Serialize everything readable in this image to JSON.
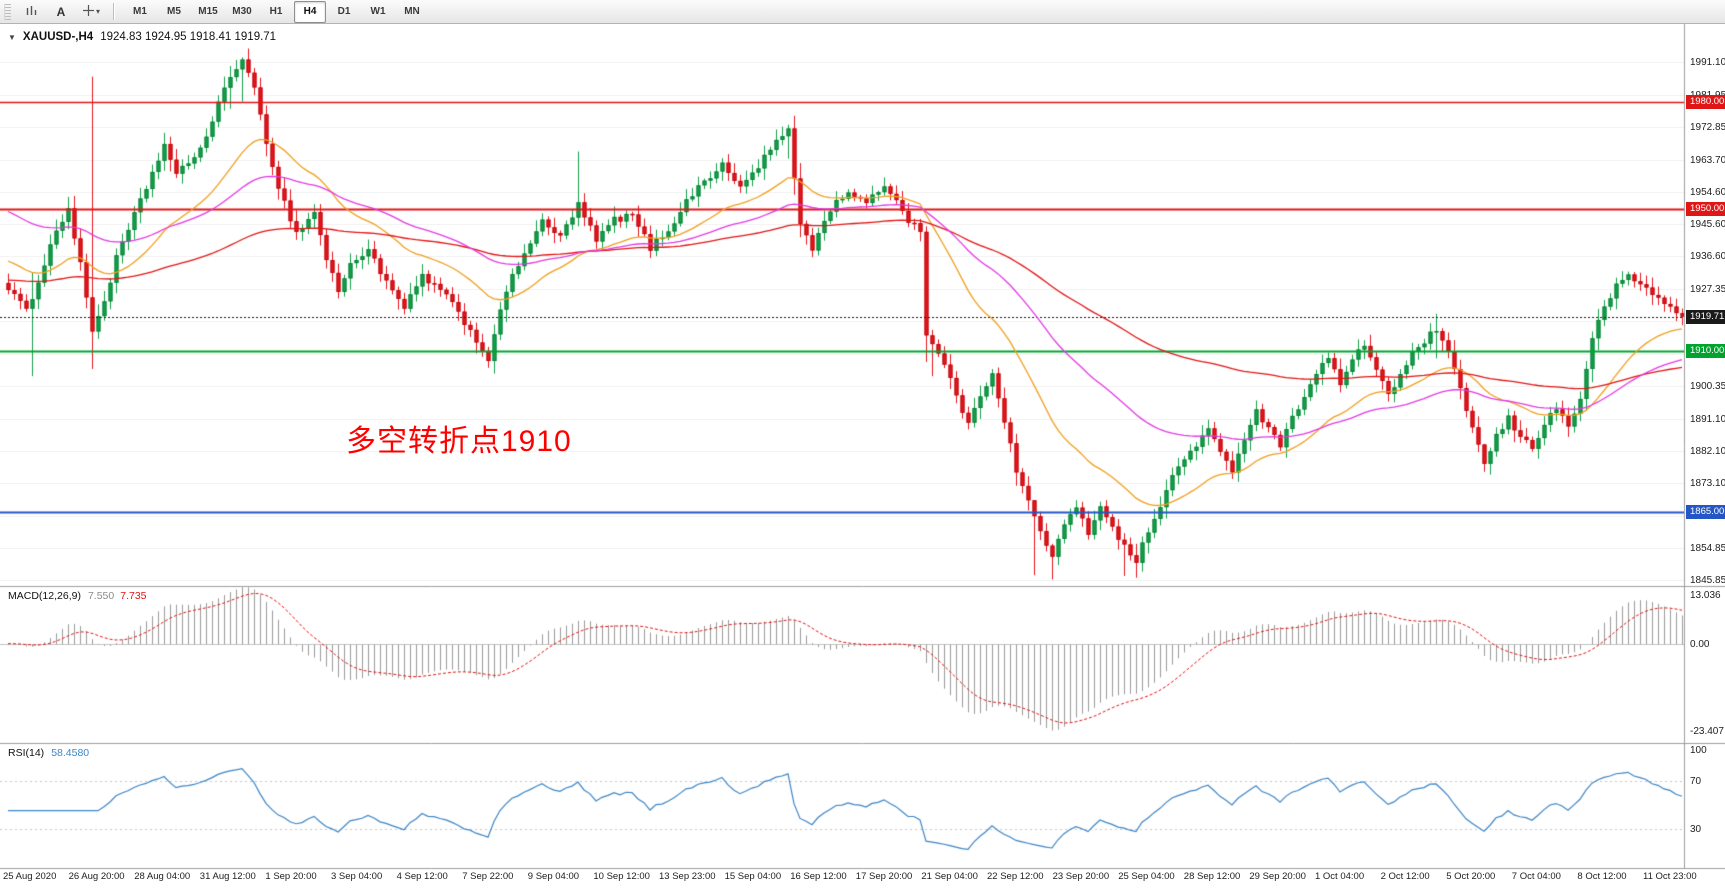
{
  "toolbar": {
    "text_tool_label": "A",
    "timeframes": [
      "M1",
      "M5",
      "M15",
      "M30",
      "H1",
      "H4",
      "D1",
      "W1",
      "MN"
    ],
    "active_timeframe": "H4"
  },
  "chart": {
    "title": "XAUUSD-,H4",
    "ohlc": "1924.83 1924.95 1918.41 1919.71",
    "annotation": {
      "text": "多空转折点1910",
      "color": "#ff0000"
    },
    "price_axis_ticks": [
      "1991.10",
      "1981.95",
      "1972.85",
      "1963.70",
      "1954.60",
      "1945.60",
      "1936.60",
      "1927.35",
      "1918.35",
      "1909.35",
      "1900.35",
      "1891.10",
      "1882.10",
      "1873.10",
      "1863.85",
      "1854.85",
      "1845.85"
    ],
    "levels": [
      {
        "price": 1980.0,
        "label": "1980.00",
        "color": "#e01515",
        "width": 1.4,
        "style": "solid"
      },
      {
        "price": 1950.0,
        "label": "1950.00",
        "color": "#e01515",
        "width": 2.0,
        "style": "solid"
      },
      {
        "price": 1919.71,
        "label": "1919.71",
        "color": "#1a1a1a",
        "width": 1.0,
        "style": "dotted"
      },
      {
        "price": 1910.0,
        "label": "1910.00",
        "color": "#00a32e",
        "width": 2.0,
        "style": "solid"
      },
      {
        "price": 1865.0,
        "label": "1865.00",
        "color": "#2457c5",
        "width": 2.0,
        "style": "solid"
      }
    ],
    "time_axis": [
      "25 Aug 2020",
      "26 Aug 20:00",
      "28 Aug 04:00",
      "31 Aug 12:00",
      "1 Sep 20:00",
      "3 Sep 04:00",
      "4 Sep 12:00",
      "7 Sep 22:00",
      "9 Sep 04:00",
      "10 Sep 12:00",
      "13 Sep 23:00",
      "15 Sep 04:00",
      "16 Sep 12:00",
      "17 Sep 20:00",
      "21 Sep 04:00",
      "22 Sep 12:00",
      "23 Sep 20:00",
      "25 Sep 04:00",
      "28 Sep 12:00",
      "29 Sep 20:00",
      "1 Oct 04:00",
      "2 Oct 12:00",
      "5 Oct 20:00",
      "7 Oct 04:00",
      "8 Oct 12:00",
      "11 Oct 23:00"
    ]
  },
  "macd": {
    "title": "MACD(12,26,9)",
    "value_main": "7.550",
    "value_signal": "7.735",
    "axis": [
      "13.036",
      "0.00",
      "-23.407"
    ]
  },
  "rsi": {
    "title": "RSI(14)",
    "value": "58.4580",
    "axis": [
      "100",
      "70",
      "30"
    ]
  },
  "chart_data": {
    "type": "candlestick",
    "symbol": "XAUUSD-",
    "timeframe": "H4",
    "bars": 280,
    "current": {
      "open": 1924.83,
      "high": 1924.95,
      "low": 1918.41,
      "close": 1919.71
    },
    "key_levels": [
      1980.0,
      1950.0,
      1919.71,
      1910.0,
      1865.0
    ],
    "close_anchors": [
      [
        0,
        1928
      ],
      [
        3,
        1921
      ],
      [
        5,
        1930
      ],
      [
        8,
        1944
      ],
      [
        10,
        1950
      ],
      [
        12,
        1934
      ],
      [
        14,
        1916
      ],
      [
        16,
        1924
      ],
      [
        18,
        1936
      ],
      [
        20,
        1944
      ],
      [
        22,
        1952
      ],
      [
        24,
        1960
      ],
      [
        26,
        1968
      ],
      [
        28,
        1959
      ],
      [
        30,
        1963
      ],
      [
        32,
        1967
      ],
      [
        34,
        1974
      ],
      [
        36,
        1984
      ],
      [
        38,
        1990
      ],
      [
        39,
        1991.5
      ],
      [
        41,
        1983
      ],
      [
        43,
        1969
      ],
      [
        45,
        1956
      ],
      [
        48,
        1943
      ],
      [
        51,
        1949
      ],
      [
        53,
        1936
      ],
      [
        55,
        1927
      ],
      [
        57,
        1934
      ],
      [
        60,
        1939
      ],
      [
        63,
        1929
      ],
      [
        66,
        1922
      ],
      [
        69,
        1931
      ],
      [
        72,
        1927
      ],
      [
        75,
        1921
      ],
      [
        78,
        1913
      ],
      [
        80,
        1908
      ],
      [
        83,
        1927
      ],
      [
        86,
        1938
      ],
      [
        89,
        1946
      ],
      [
        92,
        1942
      ],
      [
        95,
        1951
      ],
      [
        98,
        1941
      ],
      [
        101,
        1947
      ],
      [
        104,
        1948
      ],
      [
        107,
        1939
      ],
      [
        110,
        1944
      ],
      [
        113,
        1952
      ],
      [
        116,
        1958
      ],
      [
        119,
        1962
      ],
      [
        122,
        1956
      ],
      [
        125,
        1962
      ],
      [
        128,
        1969
      ],
      [
        130,
        1971.5
      ],
      [
        132,
        1946
      ],
      [
        134,
        1939
      ],
      [
        137,
        1950
      ],
      [
        140,
        1955
      ],
      [
        143,
        1951
      ],
      [
        146,
        1957
      ],
      [
        148,
        1952
      ],
      [
        150,
        1947
      ],
      [
        152,
        1944
      ],
      [
        153,
        1915
      ],
      [
        156,
        1906
      ],
      [
        158,
        1898
      ],
      [
        160,
        1889
      ],
      [
        162,
        1898
      ],
      [
        164,
        1904
      ],
      [
        166,
        1891
      ],
      [
        168,
        1876
      ],
      [
        170,
        1868
      ],
      [
        172,
        1859
      ],
      [
        174,
        1853
      ],
      [
        176,
        1861
      ],
      [
        178,
        1866
      ],
      [
        180,
        1859
      ],
      [
        182,
        1867
      ],
      [
        184,
        1861
      ],
      [
        186,
        1855
      ],
      [
        188,
        1851
      ],
      [
        190,
        1860
      ],
      [
        192,
        1866
      ],
      [
        194,
        1875
      ],
      [
        196,
        1880
      ],
      [
        198,
        1884
      ],
      [
        200,
        1888
      ],
      [
        202,
        1881
      ],
      [
        204,
        1877
      ],
      [
        206,
        1886
      ],
      [
        208,
        1893
      ],
      [
        210,
        1889
      ],
      [
        212,
        1884
      ],
      [
        214,
        1891
      ],
      [
        216,
        1898
      ],
      [
        218,
        1904
      ],
      [
        220,
        1908
      ],
      [
        222,
        1901
      ],
      [
        224,
        1907
      ],
      [
        226,
        1912
      ],
      [
        228,
        1905
      ],
      [
        230,
        1898
      ],
      [
        232,
        1903
      ],
      [
        234,
        1909
      ],
      [
        236,
        1913
      ],
      [
        238,
        1916
      ],
      [
        240,
        1909
      ],
      [
        242,
        1899
      ],
      [
        244,
        1889
      ],
      [
        246,
        1878
      ],
      [
        248,
        1886
      ],
      [
        250,
        1891
      ],
      [
        252,
        1886
      ],
      [
        254,
        1883
      ],
      [
        256,
        1890
      ],
      [
        258,
        1894
      ],
      [
        260,
        1889
      ],
      [
        262,
        1897
      ],
      [
        264,
        1913
      ],
      [
        266,
        1923
      ],
      [
        268,
        1928
      ],
      [
        270,
        1931
      ],
      [
        272,
        1929
      ],
      [
        274,
        1926
      ],
      [
        276,
        1923.5
      ],
      [
        278,
        1921.5
      ],
      [
        279,
        1919.71
      ]
    ],
    "wick_overrides": {
      "4": [
        1932,
        1903
      ],
      "14": [
        1987,
        1905
      ],
      "37": [
        1990,
        1978
      ],
      "39": [
        1992.4,
        1980
      ],
      "95": [
        1966,
        1945
      ],
      "130": [
        1973.5,
        1964
      ],
      "153": [
        1945,
        1907
      ],
      "154": [
        1916,
        1903
      ],
      "171": [
        1862,
        1847.2
      ],
      "174": [
        1856,
        1846
      ],
      "186": [
        1859,
        1847
      ],
      "188": [
        1856,
        1846.5
      ],
      "238": [
        1920.5,
        1908
      ],
      "246": [
        1884,
        1876.2
      ]
    },
    "ma": [
      {
        "period": 24,
        "color": "#ef9f1f",
        "seed": 1936
      },
      {
        "period": 120,
        "color": "#e01515",
        "seed": 1930
      },
      {
        "period": 55,
        "color": "#e23ae2",
        "seed": 1950
      }
    ],
    "colors": {
      "up": "#14a14a",
      "up_border": "#0c8038",
      "down": "#e8161c",
      "down_border": "#b50d12",
      "macd_hist": "#9b9b9b",
      "macd_signal": "#e01515",
      "rsi_line": "#3d85c6",
      "grid": "#f0f0f0",
      "separator": "#9c9c9c"
    }
  }
}
